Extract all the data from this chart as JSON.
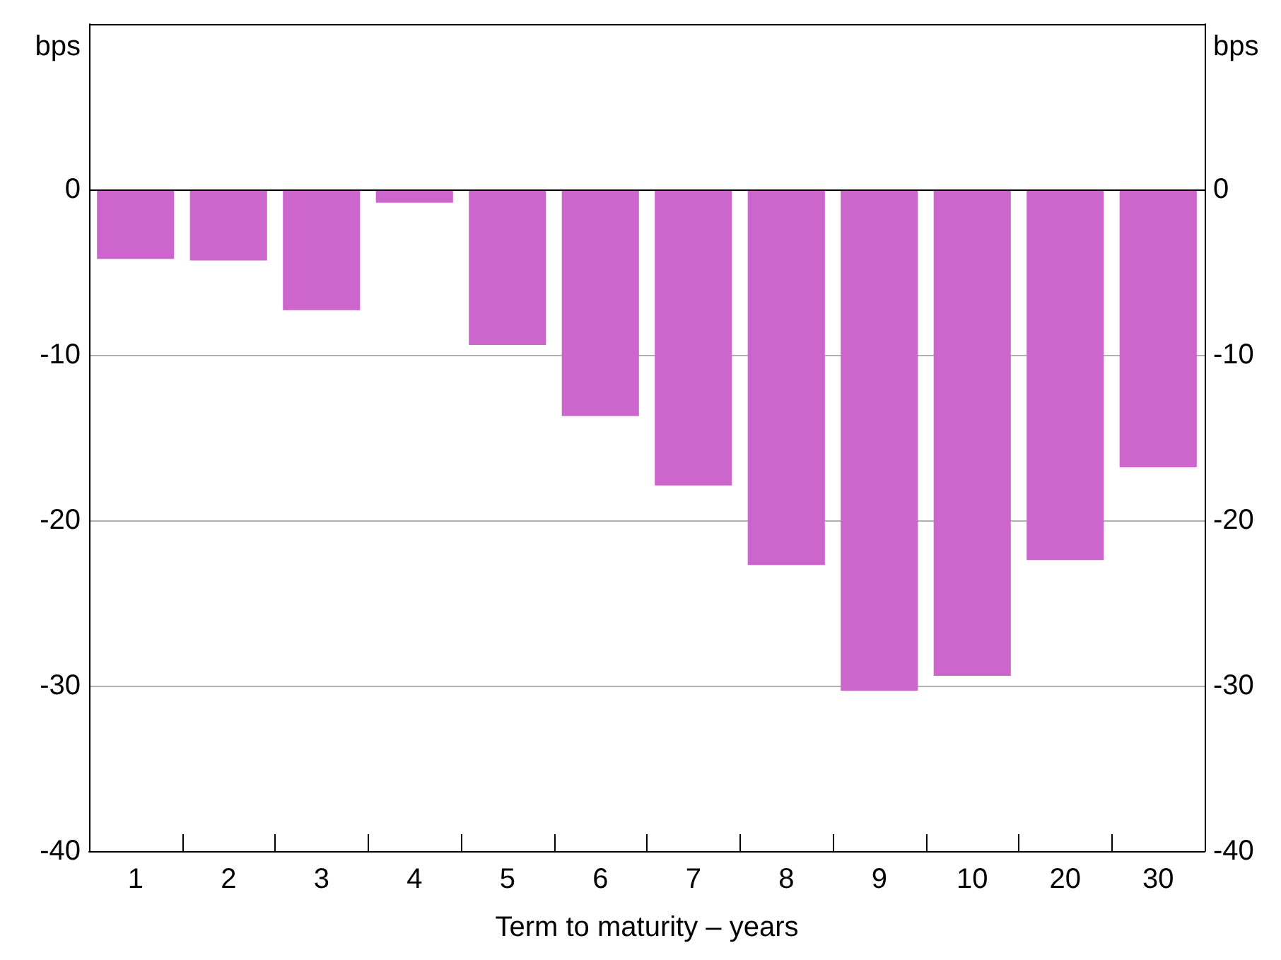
{
  "chart_data": {
    "type": "bar",
    "xlabel": "Term to maturity – years",
    "ylabel": "bps",
    "y2label": "bps",
    "categories": [
      "1",
      "2",
      "3",
      "4",
      "5",
      "6",
      "7",
      "8",
      "9",
      "10",
      "20",
      "30"
    ],
    "values": [
      -4.2,
      -4.3,
      -7.3,
      -0.8,
      -9.4,
      -13.7,
      -17.9,
      -22.7,
      -30.3,
      -29.4,
      -22.4,
      -16.8
    ],
    "color": "#cc66cc",
    "ylim": [
      -40,
      10
    ],
    "yticks": [
      -40,
      -30,
      -20,
      -10,
      0
    ],
    "y2lim": [
      -40,
      10
    ],
    "y2ticks": [
      -40,
      -30,
      -20,
      -10,
      0
    ],
    "ref_lines": [
      {
        "axis": "y",
        "value": 0,
        "color": "#000000"
      }
    ],
    "grid": "y"
  }
}
